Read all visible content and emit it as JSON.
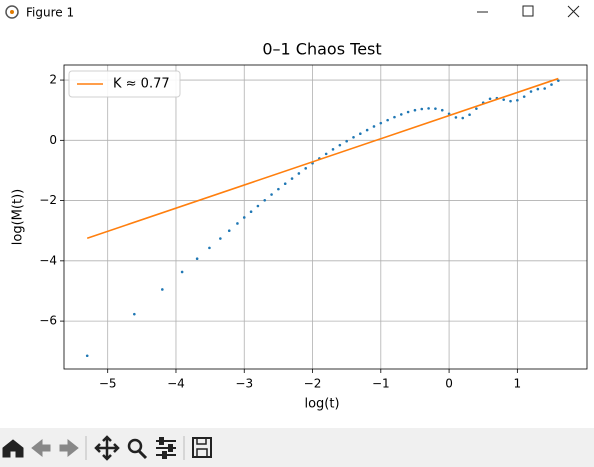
{
  "window": {
    "title": "Figure 1"
  },
  "chart_data": {
    "type": "scatter",
    "title": "0–1 Chaos Test",
    "x_label": "log(t)",
    "y_label": "log(M(t))",
    "xlim": [
      -5.64,
      2.02
    ],
    "ylim": [
      -7.59,
      2.5
    ],
    "xticks": [
      {
        "value": -5,
        "label": "−5"
      },
      {
        "value": -4,
        "label": "−4"
      },
      {
        "value": -3,
        "label": "−3"
      },
      {
        "value": -2,
        "label": "−2"
      },
      {
        "value": -1,
        "label": "−1"
      },
      0,
      1
    ],
    "yticks": [
      2,
      0,
      {
        "value": -2,
        "label": "−2"
      },
      {
        "value": -4,
        "label": "−4"
      },
      {
        "value": -6,
        "label": "−6"
      }
    ],
    "grid": true,
    "legend": "upper left",
    "series": [
      {
        "type": "scatter",
        "color": "#1f77b4",
        "x": [
          -5.3,
          -4.61,
          -4.2,
          -3.91,
          -3.69,
          -3.51,
          -3.35,
          -3.22,
          -3.1,
          -3.0,
          -2.9,
          -2.8,
          -2.7,
          -2.6,
          -2.5,
          -2.4,
          -2.3,
          -2.2,
          -2.1,
          -2.0,
          -1.9,
          -1.8,
          -1.7,
          -1.6,
          -1.5,
          -1.4,
          -1.3,
          -1.2,
          -1.1,
          -1.0,
          -0.9,
          -0.8,
          -0.7,
          -0.6,
          -0.5,
          -0.4,
          -0.3,
          -0.2,
          -0.1,
          0.0,
          0.1,
          0.2,
          0.3,
          0.4,
          0.5,
          0.6,
          0.7,
          0.8,
          0.9,
          1.0,
          1.1,
          1.2,
          1.3,
          1.4,
          1.5,
          1.6
        ],
        "values": [
          -7.15,
          -5.77,
          -4.95,
          -4.37,
          -3.93,
          -3.57,
          -3.26,
          -3.0,
          -2.76,
          -2.56,
          -2.37,
          -2.18,
          -1.99,
          -1.8,
          -1.62,
          -1.44,
          -1.27,
          -1.1,
          -0.93,
          -0.76,
          -0.6,
          -0.45,
          -0.3,
          -0.16,
          -0.03,
          0.1,
          0.22,
          0.34,
          0.46,
          0.57,
          0.67,
          0.77,
          0.86,
          0.94,
          1.0,
          1.04,
          1.06,
          1.05,
          1.0,
          0.88,
          0.76,
          0.74,
          0.85,
          1.05,
          1.25,
          1.38,
          1.4,
          1.35,
          1.3,
          1.33,
          1.45,
          1.62,
          1.7,
          1.72,
          1.85,
          1.98
        ]
      },
      {
        "type": "line",
        "name": "K ≈ 0.77",
        "color": "#ff7f0e",
        "x": [
          -5.3,
          1.6
        ],
        "values": [
          -3.25,
          2.05
        ]
      }
    ]
  }
}
